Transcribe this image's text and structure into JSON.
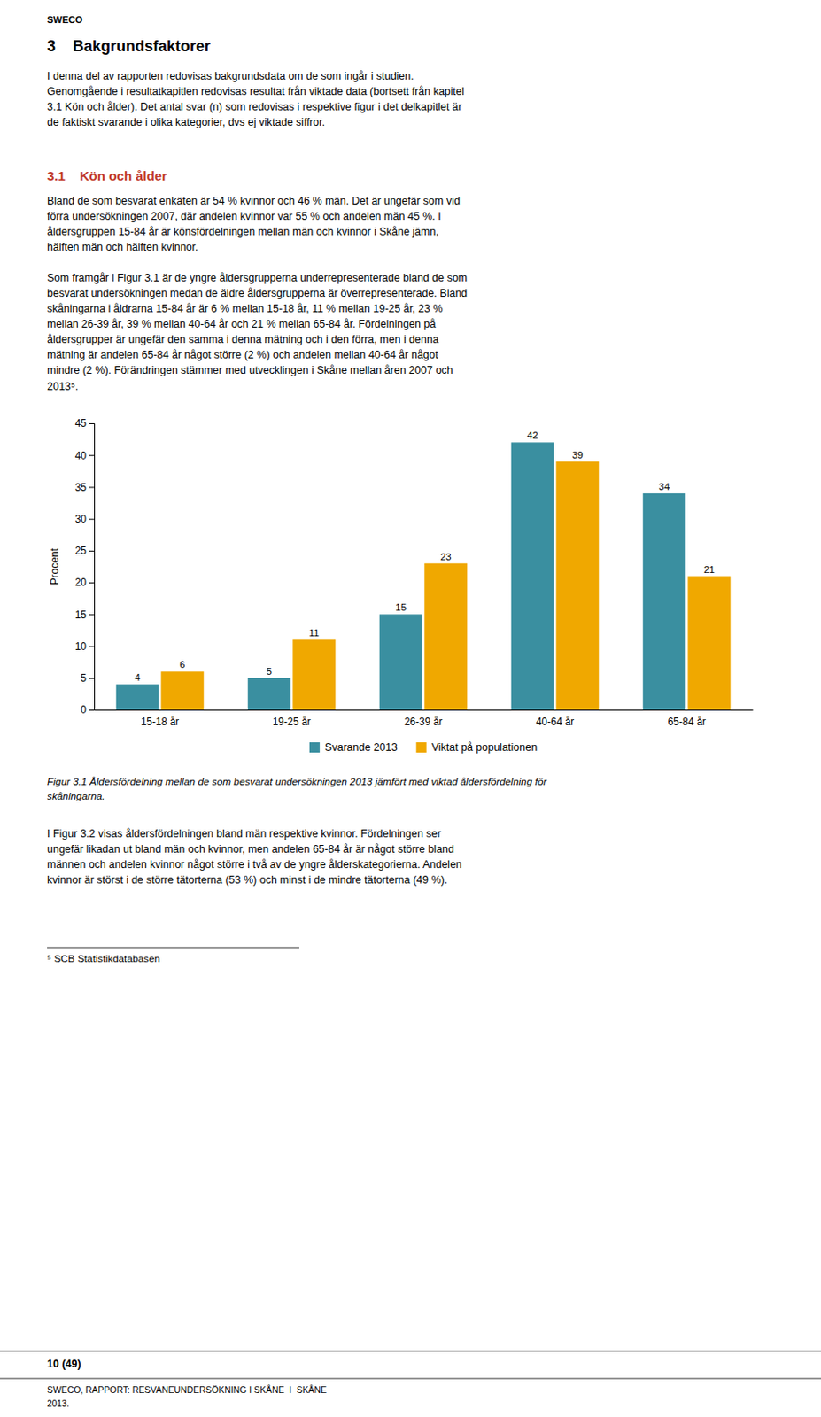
{
  "chart_data": {
    "type": "bar",
    "categories": [
      "15-18 år",
      "19-25 år",
      "26-39 år",
      "40-64 år",
      "65-84 år"
    ],
    "series": [
      {
        "name": "Svarande 2013",
        "color": "#3a8fa0",
        "values": [
          4,
          5,
          15,
          42,
          34
        ]
      },
      {
        "name": "Viktat på populationen",
        "color": "#f0a800",
        "values": [
          6,
          11,
          23,
          39,
          21
        ]
      }
    ],
    "ylabel": "Procent",
    "ylim": [
      0,
      45
    ],
    "yticks": [
      0,
      5,
      10,
      15,
      20,
      25,
      30,
      35,
      40,
      45
    ],
    "data_labels": true,
    "legend": "bottom",
    "grid": false
  },
  "page": {
    "logo": "SWECO",
    "heading": "3    Bakgrundsfaktorer",
    "intro": [
      "I denna del av rapporten redovisas bakgrundsdata om de som ingår i studien.",
      "Genomgående i resultatkapitlen redovisas resultat från viktade data (bortsett från kapitel",
      "3.1 Kön och ålder). Det antal svar (n) som redovisas i respektive figur i det delkapitlet är",
      "de faktiskt svarande i olika kategorier, dvs ej viktade siffror."
    ],
    "subheading": "3.1    Kön och ålder",
    "body2": [
      "Bland de som besvarat enkäten är 54 % kvinnor och 46 % män. Det är ungefär som vid",
      "förra undersökningen 2007, där andelen kvinnor var 55 % och andelen män 45 %. I",
      "åldersgruppen 15-84 år är könsfördelningen mellan män och kvinnor i Skåne jämn,",
      "hälften män och hälften kvinnor."
    ],
    "body3": [
      "Som framgår i Figur 3.1 är de yngre åldersgrupperna underrepresenterade bland de som",
      "besvarat undersökningen medan de äldre åldersgrupperna är överrepresenterade. Bland",
      "skåningarna i åldrarna 15-84 år är 6 % mellan 15-18 år, 11 % mellan 19-25 år, 23 %",
      "mellan 26-39 år, 39 % mellan 40-64 år och 21 % mellan 65-84 år. Fördelningen på",
      "åldersgrupper är ungefär den samma i denna mätning och i den förra, men i denna",
      "mätning är andelen 65-84 år något större (2 %) och andelen mellan 40-64 år något",
      "mindre (2 %). Förändringen stämmer med utvecklingen i Skåne mellan åren 2007 och",
      "2013⁵."
    ],
    "caption": [
      "Figur 3.1 Åldersfördelning mellan de som besvarat undersökningen 2013 jämfört med viktad åldersfördelning för",
      "skåningarna."
    ],
    "body4": [
      "I Figur 3.2 visas åldersfördelningen bland män respektive kvinnor. Fördelningen ser",
      "ungefär likadan ut bland män och kvinnor, men andelen 65-84 år är något större bland",
      "männen och andelen kvinnor något större i två av de yngre ålderskategorierna. Andelen",
      "kvinnor är störst i de större tätorterna (53 %) och minst i de mindre tätorterna (49 %)."
    ],
    "footnote": "⁵ SCB Statistikdatabasen",
    "footer_page": "10 (49)",
    "footer_report": "SWECO, RAPPORT: RESVANEUNDERSÖKNING I SKÅNE  I  SKÅNE",
    "footer_year": "2013."
  }
}
